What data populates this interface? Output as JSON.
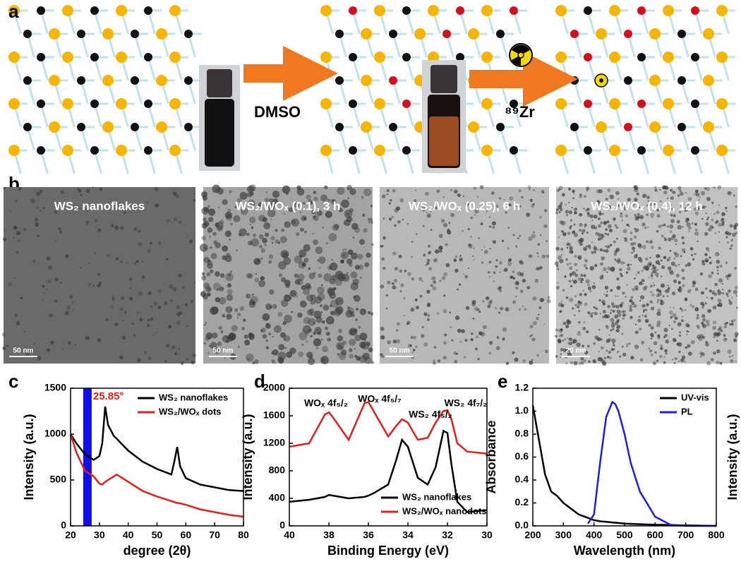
{
  "panel_labels": [
    "a",
    "b",
    "c",
    "d",
    "e"
  ],
  "scheme": {
    "step1": "DMSO",
    "step2": "⁸⁹Zr"
  },
  "tem_images": [
    {
      "label": "WS₂ nanoflakes",
      "scale_bar": "50 nm"
    },
    {
      "label": "WS₂/WOₓ (0.1), 3 h",
      "scale_bar": "50 nm"
    },
    {
      "label": "WS₂/WOₓ (0.25), 6 h",
      "scale_bar": "50 nm"
    },
    {
      "label": "WS₂/WOₓ (0.4), 12 h",
      "scale_bar": "20 nm"
    }
  ],
  "chart_data": [
    {
      "type": "line",
      "xlabel": "degree (2θ)",
      "ylabel": "Intensity (a.u.)",
      "annotations": [
        "25.85°"
      ],
      "x": [
        20,
        22,
        25,
        28,
        30,
        31,
        32,
        33,
        35,
        36,
        40,
        45,
        50,
        55,
        56,
        57,
        58,
        60,
        65,
        70,
        75,
        80
      ],
      "series": [
        {
          "name": "WS₂ nanoflakes",
          "color": "#000000",
          "values": [
            1000,
            900,
            780,
            720,
            760,
            900,
            1300,
            1100,
            980,
            950,
            820,
            700,
            620,
            560,
            700,
            860,
            650,
            520,
            450,
            420,
            390,
            380
          ]
        },
        {
          "name": "WS₂/WOₓ dots",
          "color": "#e0201b",
          "values": [
            1000,
            800,
            600,
            540,
            460,
            450,
            480,
            500,
            540,
            560,
            480,
            380,
            320,
            270,
            260,
            250,
            245,
            230,
            180,
            150,
            120,
            100
          ]
        }
      ],
      "xlim": [
        20,
        80
      ],
      "xticks": [
        20,
        30,
        40,
        50,
        60,
        70,
        80
      ],
      "ylim": [
        0,
        1500
      ],
      "yticks": [
        0,
        500,
        1000,
        1500
      ],
      "legend": "top-right"
    },
    {
      "type": "line",
      "xlabel": "Binding Energy (eV)",
      "ylabel": "Intensity (a.u.)",
      "annotations": [
        "WOₓ 4f₅/₂",
        "WOₓ 4f₅/₇",
        "WS₂ 4f₅/₂",
        "WS₂ 4f₇/₂"
      ],
      "x": [
        40,
        39,
        38.2,
        38,
        37.8,
        37,
        36.2,
        36,
        35.7,
        35,
        34.6,
        34.3,
        34,
        33.5,
        33,
        32.6,
        32.2,
        32,
        31.8,
        31.5,
        31,
        30
      ],
      "series": [
        {
          "name": "WS₂ nanoflakes",
          "color": "#000000",
          "values": [
            350,
            380,
            420,
            450,
            440,
            400,
            420,
            440,
            480,
            600,
            950,
            1250,
            1150,
            700,
            600,
            850,
            1380,
            1350,
            900,
            350,
            200,
            230
          ]
        },
        {
          "name": "WS₂/WOₓ nanodots",
          "color": "#e0201b",
          "values": [
            1150,
            1200,
            1620,
            1650,
            1580,
            1250,
            1780,
            1800,
            1650,
            1300,
            1450,
            1550,
            1500,
            1250,
            1280,
            1500,
            1670,
            1680,
            1550,
            1200,
            1080,
            1050
          ]
        }
      ],
      "xlim": [
        40,
        30
      ],
      "xticks": [
        40,
        38,
        36,
        34,
        32,
        30
      ],
      "ylim": [
        0,
        2000
      ],
      "yticks": [
        0,
        400,
        800,
        1200,
        1600,
        2000
      ],
      "legend": "bottom-right"
    },
    {
      "type": "line",
      "xlabel": "Wavelength (nm)",
      "ylabel": "Absorbance",
      "y2label": "Intensity (a.u.)",
      "x": [
        200,
        220,
        240,
        260,
        280,
        300,
        350,
        380,
        400,
        420,
        440,
        460,
        470,
        480,
        500,
        520,
        550,
        600,
        650,
        700,
        800
      ],
      "series": [
        {
          "name": "UV-vis",
          "color": "#000000",
          "values": [
            1.05,
            0.75,
            0.45,
            0.3,
            0.26,
            0.2,
            0.1,
            0.07,
            0.05,
            0.04,
            0.035,
            0.03,
            0.028,
            0.025,
            0.02,
            0.018,
            0.015,
            0.01,
            0.008,
            0.005,
            0
          ]
        },
        {
          "name": "PL",
          "color": "#1f1fe0",
          "values": [
            null,
            null,
            null,
            null,
            null,
            null,
            null,
            0.02,
            0.1,
            0.55,
            0.95,
            1.08,
            1.06,
            1.0,
            0.8,
            0.55,
            0.3,
            0.08,
            0.01,
            0,
            0
          ]
        }
      ],
      "xlim": [
        200,
        800
      ],
      "xticks": [
        200,
        300,
        400,
        500,
        600,
        700,
        800
      ],
      "ylim": [
        0,
        1.2
      ],
      "yticks": [
        {
          "value": 0,
          "label": "0.0"
        },
        {
          "value": 0.2,
          "label": "0.2"
        },
        {
          "value": 0.4,
          "label": "0.4"
        },
        {
          "value": 0.6,
          "label": "0.6"
        },
        {
          "value": 0.8,
          "label": "0.8"
        },
        {
          "value": 1,
          "label": "1.0"
        },
        {
          "value": 1.2,
          "label": "1.2"
        }
      ],
      "legend": "top-right"
    }
  ]
}
